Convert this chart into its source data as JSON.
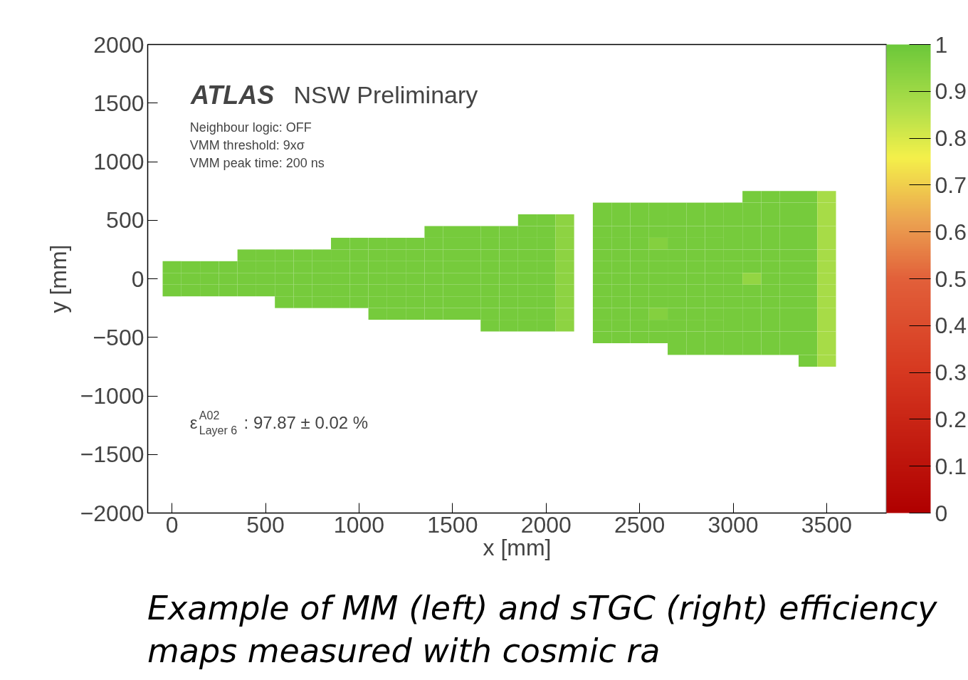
{
  "chart_data": {
    "type": "heatmap",
    "xlabel": "x [mm]",
    "ylabel": "y [mm]",
    "x": [
      0,
      100,
      200,
      300,
      400,
      500,
      600,
      700,
      800,
      900,
      1000,
      1100,
      1200,
      1300,
      1400,
      1500,
      1600,
      1700,
      1800,
      1900,
      2000,
      2100,
      2200,
      2300,
      2400,
      2500,
      2600,
      2700,
      2800,
      2900,
      3000,
      3100,
      3200,
      3300,
      3400,
      3500
    ],
    "y": [
      700,
      600,
      500,
      400,
      300,
      200,
      100,
      0,
      -100,
      -200,
      -300,
      -400,
      -500,
      -600,
      -700
    ],
    "cells": [
      [
        null,
        null,
        null,
        null,
        null,
        null,
        null,
        null,
        null,
        null,
        null,
        null,
        null,
        null,
        null,
        null,
        null,
        null,
        null,
        null,
        null,
        null,
        null,
        null,
        null,
        null,
        null,
        null,
        null,
        null,
        null,
        0.98,
        0.98,
        0.98,
        0.98,
        0.88
      ],
      [
        null,
        null,
        null,
        null,
        null,
        null,
        null,
        null,
        null,
        null,
        null,
        null,
        null,
        null,
        null,
        null,
        null,
        null,
        null,
        null,
        null,
        null,
        null,
        0.98,
        0.98,
        0.98,
        0.98,
        0.98,
        0.98,
        0.98,
        0.98,
        0.98,
        0.98,
        0.98,
        0.98,
        0.88
      ],
      [
        null,
        null,
        null,
        null,
        null,
        null,
        null,
        null,
        null,
        null,
        null,
        null,
        null,
        null,
        null,
        null,
        null,
        null,
        null,
        0.98,
        0.98,
        0.93,
        null,
        0.98,
        0.98,
        0.98,
        0.98,
        0.98,
        0.98,
        0.98,
        0.98,
        0.98,
        0.98,
        0.98,
        0.98,
        0.88
      ],
      [
        null,
        null,
        null,
        null,
        null,
        null,
        null,
        null,
        null,
        null,
        null,
        null,
        null,
        null,
        0.98,
        0.98,
        0.98,
        0.98,
        0.98,
        0.98,
        0.98,
        0.93,
        null,
        0.98,
        0.98,
        0.98,
        0.98,
        0.98,
        0.98,
        0.98,
        0.98,
        0.98,
        0.98,
        0.98,
        0.98,
        0.88
      ],
      [
        null,
        null,
        null,
        null,
        null,
        null,
        null,
        null,
        null,
        0.98,
        0.98,
        0.98,
        0.98,
        0.98,
        0.98,
        0.98,
        0.98,
        0.98,
        0.98,
        0.98,
        0.98,
        0.93,
        null,
        0.98,
        0.98,
        0.98,
        0.95,
        0.98,
        0.98,
        0.98,
        0.98,
        0.98,
        0.98,
        0.98,
        0.98,
        0.88
      ],
      [
        null,
        null,
        null,
        null,
        0.98,
        0.98,
        0.98,
        0.98,
        0.98,
        0.98,
        0.98,
        0.98,
        0.98,
        0.98,
        0.98,
        0.98,
        0.98,
        0.98,
        0.98,
        0.98,
        0.98,
        0.93,
        null,
        0.98,
        0.98,
        0.98,
        0.98,
        0.98,
        0.98,
        0.98,
        0.98,
        0.98,
        0.98,
        0.98,
        0.98,
        0.88
      ],
      [
        0.98,
        0.98,
        0.98,
        0.98,
        0.98,
        0.98,
        0.98,
        0.98,
        0.98,
        0.98,
        0.98,
        0.98,
        0.98,
        0.98,
        0.98,
        0.98,
        0.98,
        0.98,
        0.98,
        0.98,
        0.98,
        0.93,
        null,
        0.98,
        0.98,
        0.98,
        0.98,
        0.98,
        0.98,
        0.98,
        0.98,
        0.98,
        0.98,
        0.98,
        0.98,
        0.88
      ],
      [
        0.98,
        0.98,
        0.98,
        0.98,
        0.98,
        0.98,
        0.98,
        0.98,
        0.98,
        0.98,
        0.98,
        0.98,
        0.98,
        0.98,
        0.98,
        0.98,
        0.98,
        0.98,
        0.98,
        0.98,
        0.98,
        0.93,
        null,
        0.98,
        0.98,
        0.98,
        0.98,
        0.98,
        0.98,
        0.98,
        0.98,
        0.92,
        0.98,
        0.98,
        0.98,
        0.88
      ],
      [
        0.98,
        0.98,
        0.98,
        0.98,
        0.98,
        0.98,
        0.98,
        0.98,
        0.98,
        0.98,
        0.98,
        0.98,
        0.98,
        0.98,
        0.98,
        0.98,
        0.98,
        0.98,
        0.98,
        0.98,
        0.98,
        0.93,
        null,
        0.98,
        0.98,
        0.98,
        0.98,
        0.98,
        0.98,
        0.98,
        0.98,
        0.98,
        0.98,
        0.98,
        0.98,
        0.88
      ],
      [
        null,
        null,
        null,
        null,
        null,
        null,
        0.98,
        0.98,
        0.98,
        0.98,
        0.98,
        0.98,
        0.98,
        0.98,
        0.98,
        0.98,
        0.98,
        0.98,
        0.98,
        0.98,
        0.98,
        0.93,
        null,
        0.98,
        0.98,
        0.98,
        0.98,
        0.98,
        0.98,
        0.98,
        0.98,
        0.98,
        0.98,
        0.98,
        0.98,
        0.88
      ],
      [
        null,
        null,
        null,
        null,
        null,
        null,
        null,
        null,
        null,
        null,
        null,
        0.98,
        0.98,
        0.98,
        0.98,
        0.98,
        0.98,
        0.98,
        0.98,
        0.98,
        0.98,
        0.93,
        null,
        0.98,
        0.98,
        0.98,
        0.95,
        0.98,
        0.98,
        0.98,
        0.98,
        0.98,
        0.98,
        0.98,
        0.98,
        0.88
      ],
      [
        null,
        null,
        null,
        null,
        null,
        null,
        null,
        null,
        null,
        null,
        null,
        null,
        null,
        null,
        null,
        null,
        null,
        0.98,
        0.98,
        0.98,
        0.98,
        0.93,
        null,
        0.98,
        0.98,
        0.98,
        0.98,
        0.98,
        0.98,
        0.98,
        0.98,
        0.98,
        0.98,
        0.98,
        0.98,
        0.88
      ],
      [
        null,
        null,
        null,
        null,
        null,
        null,
        null,
        null,
        null,
        null,
        null,
        null,
        null,
        null,
        null,
        null,
        null,
        null,
        null,
        null,
        null,
        null,
        null,
        0.98,
        0.98,
        0.98,
        0.98,
        0.98,
        0.98,
        0.98,
        0.98,
        0.98,
        0.98,
        0.98,
        0.98,
        0.88
      ],
      [
        null,
        null,
        null,
        null,
        null,
        null,
        null,
        null,
        null,
        null,
        null,
        null,
        null,
        null,
        null,
        null,
        null,
        null,
        null,
        null,
        null,
        null,
        null,
        null,
        null,
        null,
        null,
        0.98,
        0.98,
        0.98,
        0.98,
        0.98,
        0.98,
        0.98,
        0.98,
        0.88
      ],
      [
        null,
        null,
        null,
        null,
        null,
        null,
        null,
        null,
        null,
        null,
        null,
        null,
        null,
        null,
        null,
        null,
        null,
        null,
        null,
        null,
        null,
        null,
        null,
        null,
        null,
        null,
        null,
        null,
        null,
        null,
        null,
        null,
        null,
        null,
        0.98,
        0.88
      ]
    ],
    "xlim": [
      -130,
      3820
    ],
    "xticks": [
      0,
      500,
      1000,
      1500,
      2000,
      2500,
      3000,
      3500
    ],
    "ylim": [
      -2000,
      2000
    ],
    "yticks": [
      {
        "value": -2000,
        "label": "−2000"
      },
      {
        "value": -1500,
        "label": "−1500"
      },
      {
        "value": -1000,
        "label": "−1000"
      },
      {
        "value": -500,
        "label": "−500"
      },
      0,
      500,
      1000,
      1500,
      2000
    ],
    "clim": [
      0,
      1
    ],
    "cticks": [
      0,
      0.1,
      0.2,
      0.3,
      0.4,
      0.5,
      0.6,
      0.7,
      0.8,
      0.9,
      1
    ],
    "annotations": [
      "ATLAS",
      "NSW Preliminary",
      "Neighbour logic: OFF",
      "VMM threshold: 9xσ",
      "VMM peak time: 200 ns",
      "ε$^{A02}$$_{Layer 6}$: 97.87 ± 0.02 %",
      "Example of MM (left) and sTGC (right) efficiency maps measured with cosmic ra"
    ]
  }
}
